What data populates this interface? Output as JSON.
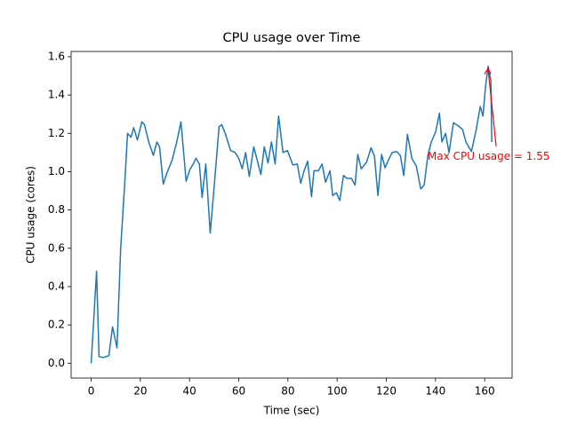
{
  "chart_data": {
    "type": "line",
    "title": "CPU usage over Time",
    "x_label": "Time (sec)",
    "y_label": "CPU usage (cores)",
    "annotation": "Max CPU usage = 1.55",
    "annotation_color": "#ff0000",
    "series": [
      {
        "color": "#1f77b4",
        "x": [
          0,
          2.2,
          3.2,
          5,
          7.2,
          8.7,
          10.5,
          12,
          13.7,
          14.8,
          16.2,
          17.3,
          18.8,
          20.6,
          21.7,
          23.5,
          25.3,
          26.7,
          27.8,
          29.3,
          30.7,
          32.9,
          34.7,
          36.5,
          37.6,
          38.6,
          40.1,
          41.5,
          42.6,
          44,
          45.1,
          46.6,
          48.4,
          49.8,
          50.9,
          52,
          53.1,
          54.5,
          56.7,
          58.5,
          60,
          61.4,
          62.8,
          64.3,
          66.1,
          67.5,
          69,
          70.4,
          71.9,
          73.3,
          74.8,
          76.2,
          78,
          79.8,
          82,
          83.8,
          85.2,
          86.6,
          88,
          89.6,
          90.6,
          92.4,
          93.9,
          95.3,
          97.1,
          98.2,
          99.7,
          101.1,
          102.6,
          104,
          105.8,
          107.3,
          108.4,
          109.8,
          112,
          113.8,
          115.2,
          116.6,
          118.1,
          119.5,
          121,
          122.4,
          124.2,
          125.7,
          127.1,
          128.6,
          130.4,
          132.2,
          134,
          135.4,
          136.9,
          138.3,
          140.1,
          141.6,
          142.6,
          144.1,
          145.5,
          147.3,
          149.2,
          151,
          152.4,
          154.6,
          156.4,
          158.2,
          159.3,
          160.3,
          161.4,
          162.5,
          162.9
        ],
        "values": [
          0,
          0.48,
          0.035,
          0.03,
          0.04,
          0.19,
          0.08,
          0.6,
          0.95,
          1.2,
          1.18,
          1.23,
          1.165,
          1.26,
          1.245,
          1.15,
          1.085,
          1.155,
          1.13,
          0.935,
          0.99,
          1.06,
          1.15,
          1.26,
          1.1,
          0.95,
          1.01,
          1.04,
          1.07,
          1.04,
          0.865,
          1.04,
          0.68,
          0.89,
          1.06,
          1.235,
          1.245,
          1.2,
          1.11,
          1.1,
          1.07,
          1.015,
          1.1,
          0.975,
          1.13,
          1.06,
          0.985,
          1.13,
          1.045,
          1.155,
          1.04,
          1.29,
          1.1,
          1.11,
          1.035,
          1.04,
          0.94,
          1.005,
          1.055,
          0.87,
          1.005,
          1.005,
          1.04,
          0.945,
          1.005,
          0.875,
          0.89,
          0.85,
          0.98,
          0.965,
          0.965,
          0.93,
          1.09,
          1.015,
          1.05,
          1.125,
          1.08,
          0.875,
          1.09,
          1.02,
          1.065,
          1.1,
          1.105,
          1.085,
          0.98,
          1.195,
          1.07,
          1.03,
          0.91,
          0.93,
          1.085,
          1.155,
          1.21,
          1.305,
          1.155,
          1.2,
          1.1,
          1.255,
          1.24,
          1.22,
          1.155,
          1.105,
          1.21,
          1.34,
          1.29,
          1.44,
          1.55,
          1.475,
          1.155
        ]
      }
    ],
    "xlim": [
      -8.15,
      171.15
    ],
    "ylim": [
      -0.0775,
      1.6275
    ],
    "xticks": [
      0,
      20,
      40,
      60,
      80,
      100,
      120,
      140,
      160
    ],
    "yticks": [
      {
        "value": 0,
        "label": "0.0"
      },
      0.2,
      0.4,
      0.6,
      0.8,
      {
        "value": 1,
        "label": "1.0"
      },
      1.2,
      1.4,
      1.6
    ]
  }
}
